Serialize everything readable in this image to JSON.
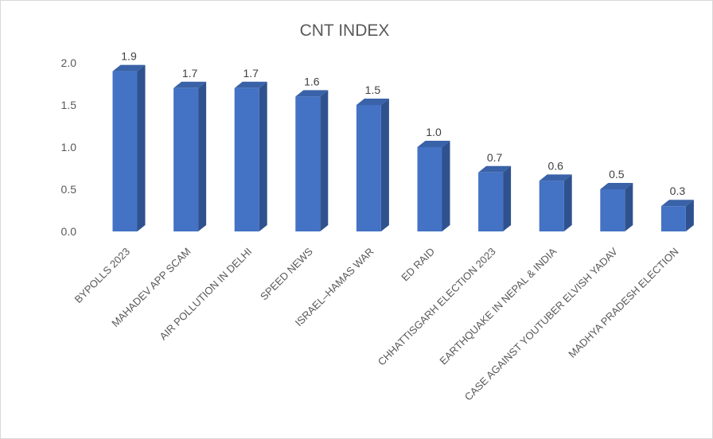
{
  "chart_data": {
    "type": "bar",
    "title": "CNT INDEX",
    "xlabel": "",
    "ylabel": "",
    "categories": [
      "BYPOLLS 2023",
      "MAHADEV APP SCAM",
      "AIR POLLUTION IN DELHI",
      "SPEED NEWS",
      "ISRAEL–HAMAS WAR",
      "ED RAID",
      "CHHATTISGARH ELECTION 2023",
      "EARTHQUAKE IN NEPAL & INDIA",
      "CASE AGAINST YOUTUBER ELVISH YADAV",
      "MADHYA PRADESH ELECTION"
    ],
    "values": [
      1.9,
      1.7,
      1.7,
      1.6,
      1.5,
      1.0,
      0.7,
      0.6,
      0.5,
      0.3
    ],
    "data_labels": [
      "1.9",
      "1.7",
      "1.7",
      "1.6",
      "1.5",
      "1.0",
      "0.7",
      "0.6",
      "0.5",
      "0.3"
    ],
    "y_ticks": [
      "0.0",
      "0.5",
      "1.0",
      "1.5",
      "2.0"
    ],
    "ylim": [
      0,
      2.0
    ],
    "grid": false,
    "legend": "none",
    "bar_style": "3d-column",
    "colors": {
      "front": "#4472c4",
      "side": "#2f528f",
      "top": "#3a62a8",
      "text": "#595959"
    }
  }
}
